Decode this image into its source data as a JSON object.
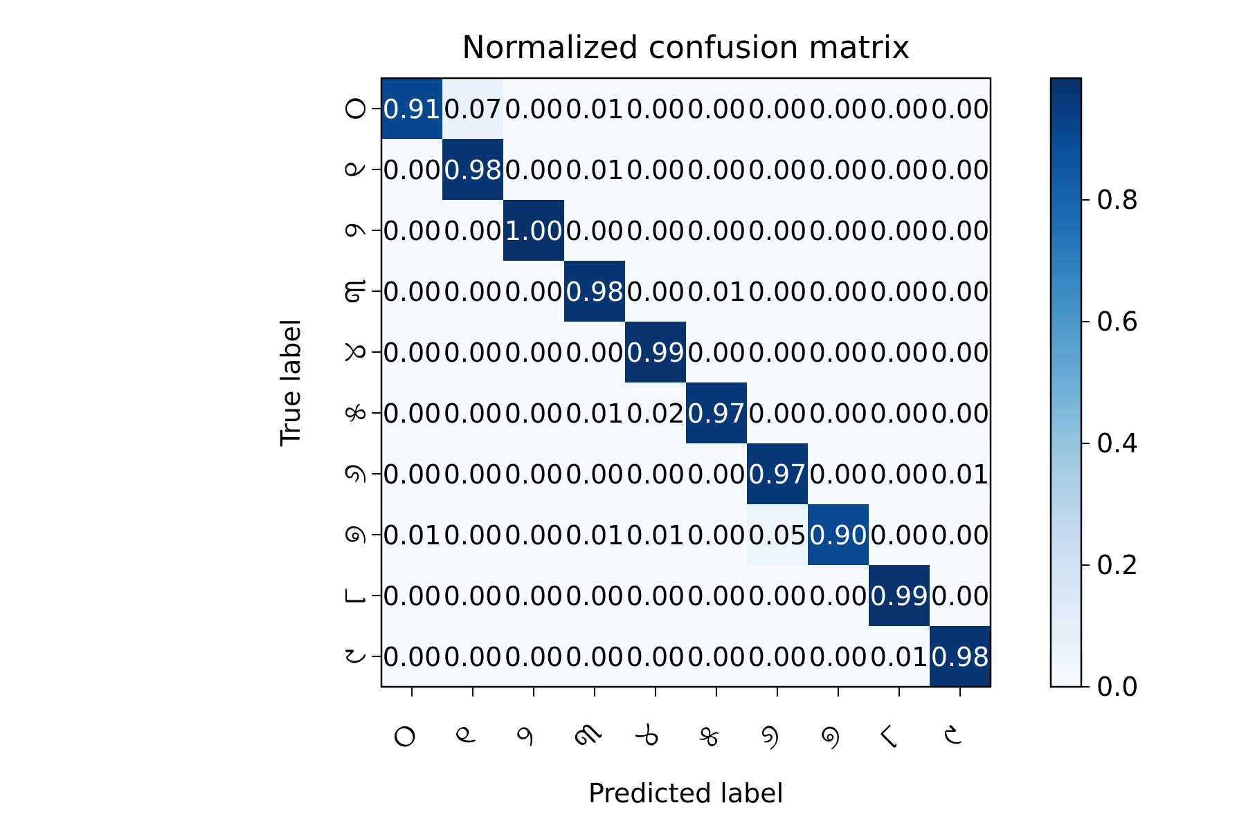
{
  "chart_data": {
    "type": "heatmap",
    "title": "Normalized confusion matrix",
    "xlabel": "Predicted label",
    "ylabel": "True label",
    "labels": [
      "୦",
      "୧",
      "୨",
      "୩",
      "୪",
      "୫",
      "୬",
      "୭",
      "୮",
      "୯"
    ],
    "matrix": [
      [
        0.91,
        0.07,
        0.0,
        0.01,
        0.0,
        0.0,
        0.0,
        0.0,
        0.0,
        0.0
      ],
      [
        0.0,
        0.98,
        0.0,
        0.01,
        0.0,
        0.0,
        0.0,
        0.0,
        0.0,
        0.0
      ],
      [
        0.0,
        0.0,
        1.0,
        0.0,
        0.0,
        0.0,
        0.0,
        0.0,
        0.0,
        0.0
      ],
      [
        0.0,
        0.0,
        0.0,
        0.98,
        0.0,
        0.01,
        0.0,
        0.0,
        0.0,
        0.0
      ],
      [
        0.0,
        0.0,
        0.0,
        0.0,
        0.99,
        0.0,
        0.0,
        0.0,
        0.0,
        0.0
      ],
      [
        0.0,
        0.0,
        0.0,
        0.01,
        0.02,
        0.97,
        0.0,
        0.0,
        0.0,
        0.0
      ],
      [
        0.0,
        0.0,
        0.0,
        0.0,
        0.0,
        0.0,
        0.97,
        0.0,
        0.0,
        0.01
      ],
      [
        0.01,
        0.0,
        0.0,
        0.01,
        0.01,
        0.0,
        0.05,
        0.9,
        0.0,
        0.0
      ],
      [
        0.0,
        0.0,
        0.0,
        0.0,
        0.0,
        0.0,
        0.0,
        0.0,
        0.99,
        0.0
      ],
      [
        0.0,
        0.0,
        0.0,
        0.0,
        0.0,
        0.0,
        0.0,
        0.0,
        0.01,
        0.98
      ]
    ],
    "colormap": "Blues",
    "colorbar": {
      "range": [
        0.0,
        1.0
      ],
      "ticks": [
        "0.0",
        "0.2",
        "0.4",
        "0.6",
        "0.8"
      ]
    },
    "grid": false
  }
}
